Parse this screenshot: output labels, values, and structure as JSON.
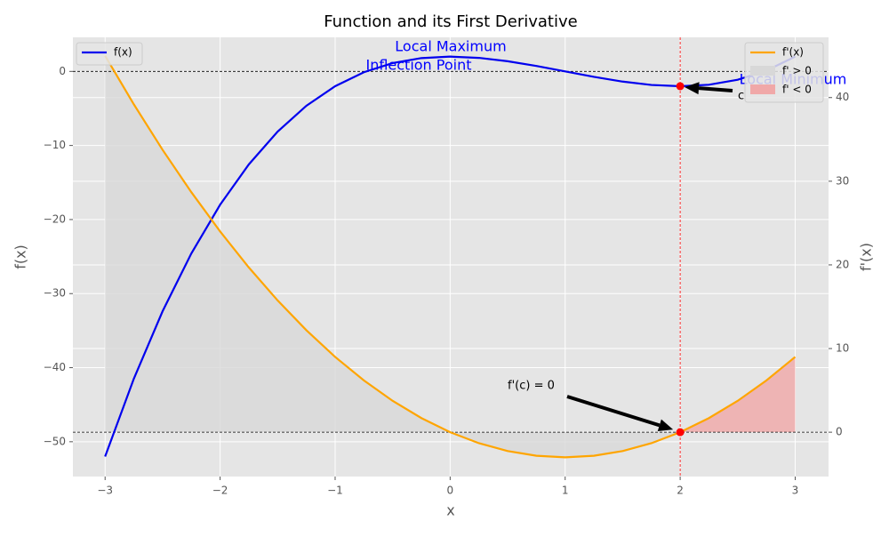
{
  "chart_data": {
    "type": "line",
    "title": "Function and its First Derivative",
    "xlabel": "x",
    "ylabel": "f(x)",
    "y2label": "f'(x)",
    "x": [
      -3,
      -2.75,
      -2.5,
      -2.25,
      -2,
      -1.75,
      -1.5,
      -1.25,
      -1,
      -0.75,
      -0.5,
      -0.25,
      0,
      0.25,
      0.5,
      0.75,
      1,
      1.25,
      1.5,
      1.75,
      2,
      2.25,
      2.5,
      2.75,
      3
    ],
    "series": [
      {
        "name": "f(x)",
        "color": "#0000ee",
        "axis": "y",
        "values": [
          -52,
          -41.484375,
          -32.375,
          -24.578125,
          -18,
          -12.546875,
          -8.125,
          -4.640625,
          -2,
          -0.109375,
          1.125,
          1.796875,
          2,
          1.828125,
          1.375,
          0.734375,
          0,
          -0.734375,
          -1.375,
          -1.828125,
          -2,
          -1.796875,
          -1.125,
          0.109375,
          2
        ]
      },
      {
        "name": "f'(x)",
        "color": "#ffa500",
        "axis": "y2",
        "values": [
          45,
          39.1875,
          33.75,
          28.6875,
          24,
          19.6875,
          15.75,
          12.1875,
          9,
          6.1875,
          3.75,
          1.6875,
          0,
          -1.3125,
          -2.25,
          -2.8125,
          -3,
          -2.8125,
          -2.25,
          -1.3125,
          0,
          1.6875,
          3.75,
          6.1875,
          9
        ]
      }
    ],
    "fills": [
      {
        "name": "f' > 0",
        "color": "#d8d8d8",
        "x_range": [
          -3,
          2
        ]
      },
      {
        "name": "f' < 0",
        "color": "#f0a8a8",
        "x_range": [
          2,
          3
        ]
      }
    ],
    "reference_lines": [
      {
        "axis": "y",
        "value": 0,
        "color": "#000000"
      },
      {
        "axis": "y2",
        "value": 0,
        "color": "#000000"
      },
      {
        "axis": "x",
        "value": 2,
        "color": "#ff0000"
      }
    ],
    "points": [
      {
        "x": 2,
        "y": -2,
        "axis": "y"
      },
      {
        "x": 2,
        "y": 0,
        "axis": "y2"
      }
    ],
    "annotations": [
      "Local Maximum",
      "Inflection Point",
      "Local Minimum",
      "c",
      "f'(c) = 0"
    ],
    "xlim": [
      -3.28,
      3.29
    ],
    "ylim": [
      -54.7,
      4.6
    ],
    "y2lim": [
      -5.3,
      47.2
    ],
    "xticks": [
      {
        "value": -3,
        "label": "−3"
      },
      {
        "value": -2,
        "label": "−2"
      },
      {
        "value": -1,
        "label": "−1"
      },
      0,
      1,
      2,
      3
    ],
    "yticks": [
      0,
      {
        "value": -10,
        "label": "−10"
      },
      {
        "value": -20,
        "label": "−20"
      },
      {
        "value": -30,
        "label": "−30"
      },
      {
        "value": -40,
        "label": "−40"
      },
      {
        "value": -50,
        "label": "−50"
      }
    ],
    "y2ticks": [
      0,
      10,
      20,
      30,
      40
    ],
    "grid": true,
    "legend": "upper left",
    "legend2": "upper right"
  }
}
